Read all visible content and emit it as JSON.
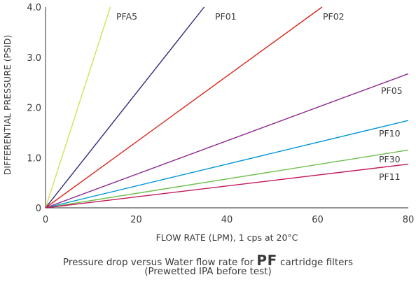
{
  "chart_data": {
    "type": "line",
    "xlabel": "FLOW RATE (LPM), 1 cps at 20°C",
    "ylabel": "DIFFERENTIAL PRESSURE (PSID)",
    "xlim": [
      0,
      80
    ],
    "ylim": [
      0,
      4.0
    ],
    "x_ticks": [
      "0",
      "20",
      "40",
      "60",
      "80"
    ],
    "y_ticks": [
      "0",
      "1.0",
      "2.0",
      "3.0",
      "4.0"
    ],
    "grid": false,
    "legend": "labels placed next to each line",
    "series": [
      {
        "name": "PFA5",
        "color": "#d4e157",
        "x": [
          0,
          14.3
        ],
        "y": [
          0,
          4.0
        ]
      },
      {
        "name": "PF01",
        "color": "#2e2a7a",
        "x": [
          0,
          35.0
        ],
        "y": [
          0,
          4.0
        ]
      },
      {
        "name": "PF02",
        "color": "#d9261c",
        "x": [
          0,
          61.0
        ],
        "y": [
          0,
          4.0
        ]
      },
      {
        "name": "PF05",
        "color": "#8e2a8e",
        "x": [
          0,
          80
        ],
        "y": [
          0,
          2.67
        ]
      },
      {
        "name": "PF10",
        "color": "#0096d6",
        "x": [
          0,
          80
        ],
        "y": [
          0,
          1.74
        ]
      },
      {
        "name": "PF30",
        "color": "#6dbf4b",
        "x": [
          0,
          80
        ],
        "y": [
          0,
          1.15
        ]
      },
      {
        "name": "PF11",
        "color": "#c2185b",
        "x": [
          0,
          80
        ],
        "y": [
          0,
          0.87
        ]
      }
    ]
  },
  "caption": {
    "line1_before": "Pressure drop versus Water flow rate for ",
    "line1_strong": "PF",
    "line1_after": " cartridge filters",
    "line2": "(Prewetted IPA before test)"
  }
}
